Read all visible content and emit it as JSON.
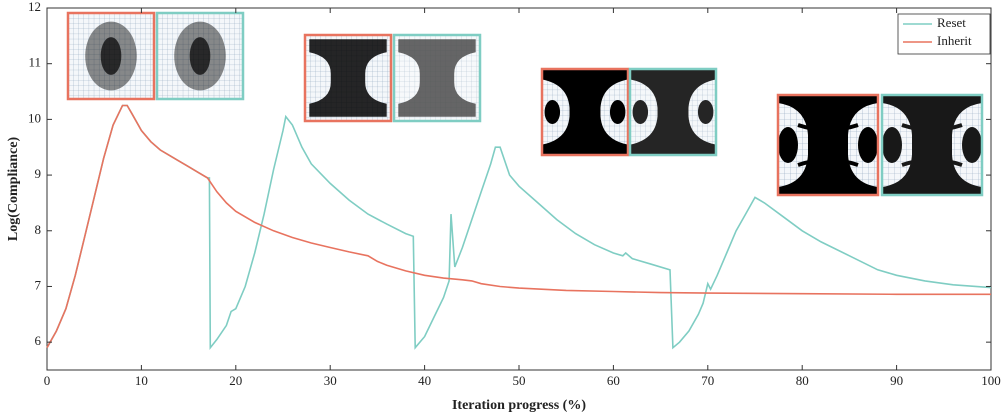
{
  "chart_data": {
    "type": "line",
    "x_label": "Iteration progress (%)",
    "y_label": "Log(Compliance)",
    "xlim": [
      0,
      100
    ],
    "xticks": [
      0,
      10,
      20,
      30,
      40,
      50,
      60,
      70,
      80,
      90,
      100
    ],
    "ylim": [
      5.5,
      12
    ],
    "yticks": [
      6,
      7,
      8,
      9,
      10,
      11,
      12
    ],
    "legend": "upper right",
    "series": [
      {
        "name": "Reset",
        "color": "#7fcdc3",
        "x": [
          0,
          1,
          2,
          3,
          4,
          5,
          6,
          7,
          8,
          8.5,
          9,
          10,
          11,
          12,
          13,
          14,
          15,
          16,
          17,
          17.2,
          17.3,
          18,
          19,
          19.5,
          20,
          21,
          22,
          23,
          24,
          25,
          25.3,
          26,
          27,
          28,
          30,
          32,
          34,
          36,
          38,
          38.8,
          39,
          40,
          41,
          42,
          42.6,
          42.8,
          43.2,
          44,
          45,
          46,
          47,
          47.5,
          48,
          49,
          50,
          52,
          54,
          56,
          58,
          60,
          61,
          61.3,
          62,
          64,
          66,
          66.3,
          67,
          68,
          69,
          69.5,
          70,
          70.3,
          71,
          72,
          73,
          74,
          75,
          76,
          78,
          80,
          82,
          85,
          88,
          90,
          93,
          96,
          100
        ],
        "values": [
          5.9,
          6.2,
          6.6,
          7.2,
          7.9,
          8.6,
          9.3,
          9.9,
          10.25,
          10.25,
          10.1,
          9.8,
          9.6,
          9.45,
          9.35,
          9.25,
          9.15,
          9.05,
          8.95,
          8.95,
          5.9,
          6.05,
          6.3,
          6.55,
          6.6,
          7.0,
          7.6,
          8.3,
          9.1,
          9.8,
          10.05,
          9.9,
          9.5,
          9.2,
          8.85,
          8.55,
          8.3,
          8.12,
          7.95,
          7.9,
          5.9,
          6.1,
          6.45,
          6.8,
          7.1,
          8.3,
          7.35,
          7.7,
          8.2,
          8.7,
          9.2,
          9.5,
          9.5,
          9.0,
          8.8,
          8.5,
          8.2,
          7.95,
          7.75,
          7.6,
          7.55,
          7.6,
          7.5,
          7.4,
          7.3,
          5.9,
          6.0,
          6.2,
          6.5,
          6.7,
          7.05,
          6.95,
          7.2,
          7.6,
          8.0,
          8.3,
          8.6,
          8.5,
          8.25,
          8.0,
          7.8,
          7.55,
          7.3,
          7.2,
          7.1,
          7.03,
          6.98
        ]
      },
      {
        "name": "Inherit",
        "color": "#e8735f",
        "x": [
          0,
          1,
          2,
          3,
          4,
          5,
          6,
          7,
          8,
          8.5,
          9,
          10,
          11,
          12,
          13,
          14,
          15,
          16,
          17,
          18,
          19,
          20,
          22,
          24,
          26,
          28,
          30,
          32,
          34,
          35,
          36,
          38,
          40,
          42,
          44,
          45,
          46,
          48,
          50,
          55,
          60,
          65,
          70,
          80,
          90,
          100
        ],
        "values": [
          5.9,
          6.2,
          6.6,
          7.2,
          7.9,
          8.6,
          9.3,
          9.9,
          10.25,
          10.25,
          10.1,
          9.8,
          9.6,
          9.45,
          9.35,
          9.25,
          9.15,
          9.05,
          8.95,
          8.7,
          8.5,
          8.35,
          8.15,
          8.0,
          7.88,
          7.78,
          7.7,
          7.62,
          7.55,
          7.45,
          7.38,
          7.28,
          7.2,
          7.15,
          7.12,
          7.1,
          7.05,
          7.0,
          6.97,
          6.93,
          6.91,
          6.89,
          6.88,
          6.87,
          6.86,
          6.86
        ]
      }
    ]
  }
}
